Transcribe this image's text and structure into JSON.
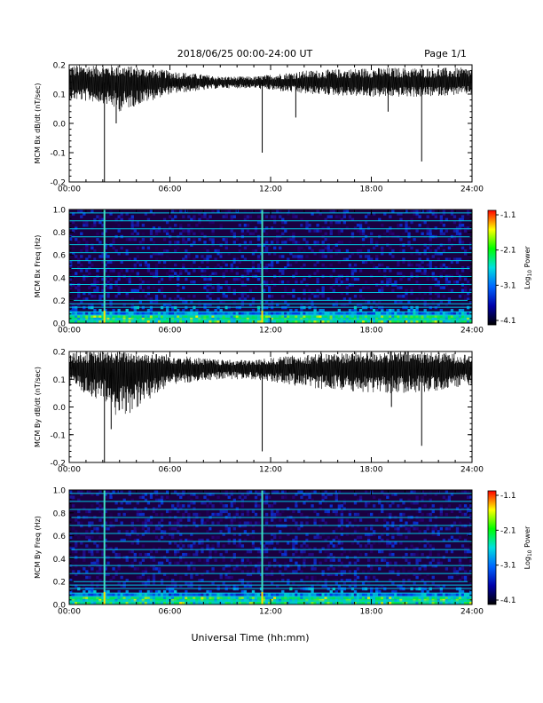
{
  "header": {
    "title": "2018/06/25  00:00-24:00 UT",
    "page": "Page 1/1"
  },
  "x_axis": {
    "ticks": [
      "00:00",
      "06:00",
      "12:00",
      "18:00",
      "24:00"
    ],
    "label": "Universal Time (hh:mm)"
  },
  "colorbar": {
    "ticks": [
      "-1.1",
      "-2.1",
      "-3.1",
      "-4.1"
    ],
    "colors": [
      "#ff0000",
      "#ffff00",
      "#00ff00",
      "#00e0e0",
      "#0066ff",
      "#0000aa",
      "#000000"
    ],
    "label_main": "Log",
    "label_sub": "10",
    "label_tail": " Power"
  },
  "chart_data": [
    {
      "type": "line",
      "ylabel": "MCM Bx dB/dt (nT/sec)",
      "xlim": [
        0,
        24
      ],
      "ylim": [
        -0.2,
        0.2
      ],
      "yticks": [
        "0.2",
        "0.1",
        "0.0",
        "-0.1",
        "-0.2"
      ],
      "baseline": 0.14,
      "envelope": [
        {
          "x": 0,
          "low": 0.08,
          "high": 0.2
        },
        {
          "x": 2,
          "low": 0.07,
          "high": 0.2
        },
        {
          "x": 3,
          "low": 0.04,
          "high": 0.2
        },
        {
          "x": 6,
          "low": 0.1,
          "high": 0.18
        },
        {
          "x": 9,
          "low": 0.12,
          "high": 0.16
        },
        {
          "x": 11,
          "low": 0.12,
          "high": 0.16
        },
        {
          "x": 14,
          "low": 0.1,
          "high": 0.18
        },
        {
          "x": 18,
          "low": 0.09,
          "high": 0.19
        },
        {
          "x": 21,
          "low": 0.09,
          "high": 0.19
        },
        {
          "x": 24,
          "low": 0.1,
          "high": 0.19
        }
      ],
      "spikes": [
        {
          "x": 2.1,
          "y": -0.2
        },
        {
          "x": 2.8,
          "y": 0.0
        },
        {
          "x": 11.5,
          "y": -0.1
        },
        {
          "x": 13.5,
          "y": 0.02
        },
        {
          "x": 19.0,
          "y": 0.04
        },
        {
          "x": 21.0,
          "y": -0.13
        }
      ]
    },
    {
      "type": "heatmap",
      "ylabel": "MCM Bx Freq (Hz)",
      "xlim": [
        0,
        24
      ],
      "ylim": [
        0.0,
        1.0
      ],
      "yticks": [
        "1.0",
        "0.8",
        "0.6",
        "0.4",
        "0.2",
        "0.0"
      ],
      "zlim": [
        -4.1,
        -1.1
      ],
      "harmonic_lines_hz": [
        0.03,
        0.07,
        0.1,
        0.14,
        0.17,
        0.2,
        0.27,
        0.34,
        0.41,
        0.48,
        0.55,
        0.62,
        0.69,
        0.76,
        0.83,
        0.9,
        0.97
      ],
      "vertical_events_hours": [
        2.1,
        11.5
      ]
    },
    {
      "type": "line",
      "ylabel": "MCM By dB/dt (nT/sec)",
      "xlim": [
        0,
        24
      ],
      "ylim": [
        -0.2,
        0.2
      ],
      "yticks": [
        "0.2",
        "0.1",
        "0.0",
        "-0.1",
        "-0.2"
      ],
      "baseline": 0.14,
      "envelope": [
        {
          "x": 0,
          "low": 0.07,
          "high": 0.2
        },
        {
          "x": 2,
          "low": 0.02,
          "high": 0.2
        },
        {
          "x": 3,
          "low": -0.05,
          "high": 0.2
        },
        {
          "x": 6,
          "low": 0.08,
          "high": 0.19
        },
        {
          "x": 9,
          "low": 0.1,
          "high": 0.17
        },
        {
          "x": 11,
          "low": 0.1,
          "high": 0.17
        },
        {
          "x": 14,
          "low": 0.07,
          "high": 0.19
        },
        {
          "x": 18,
          "low": 0.05,
          "high": 0.2
        },
        {
          "x": 21,
          "low": 0.05,
          "high": 0.2
        },
        {
          "x": 24,
          "low": 0.08,
          "high": 0.19
        }
      ],
      "spikes": [
        {
          "x": 2.1,
          "y": -0.2
        },
        {
          "x": 2.5,
          "y": -0.08
        },
        {
          "x": 11.5,
          "y": -0.16
        },
        {
          "x": 19.2,
          "y": 0.0
        },
        {
          "x": 21.0,
          "y": -0.14
        }
      ]
    },
    {
      "type": "heatmap",
      "ylabel": "MCM By Freq (Hz)",
      "xlim": [
        0,
        24
      ],
      "ylim": [
        0.0,
        1.0
      ],
      "yticks": [
        "1.0",
        "0.8",
        "0.6",
        "0.4",
        "0.2",
        "0.0"
      ],
      "zlim": [
        -4.1,
        -1.1
      ],
      "harmonic_lines_hz": [
        0.03,
        0.07,
        0.1,
        0.14,
        0.17,
        0.2,
        0.27,
        0.34,
        0.41,
        0.48,
        0.55,
        0.62,
        0.69,
        0.76,
        0.83,
        0.9,
        0.97
      ],
      "vertical_events_hours": [
        2.1,
        11.5
      ]
    }
  ]
}
